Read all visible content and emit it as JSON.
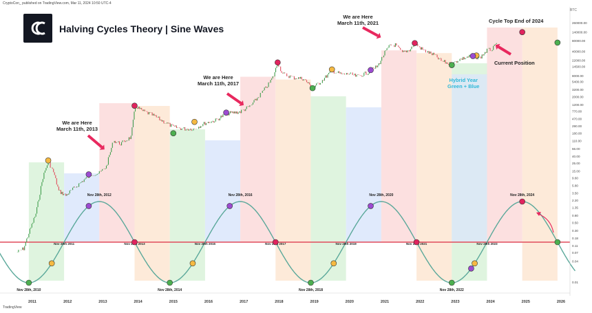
{
  "header": {
    "published": "CryptoCon_ published on TradingView.com, Mar 11, 2024 10:50 UTC-4",
    "title": "Halving Cycles Theory | Sine Waves",
    "currency": "BTC",
    "tradingview": "TradingView"
  },
  "annotations": {
    "here_2013": [
      "We are Here",
      "March 11th, 2013"
    ],
    "here_2017": [
      "We are Here",
      "March 11th, 2017"
    ],
    "here_2021": [
      "We are Here",
      "March 11th, 2021"
    ],
    "cycle_top": "Cycle Top End of 2024",
    "current_position": "Current Position",
    "hybrid_year": [
      "Hybrid Year",
      "Green + Blue"
    ]
  },
  "colors": {
    "green_zone": "#d9f2d9",
    "blue_zone": "#dbe6fb",
    "red_zone": "#fbdada",
    "orange_zone": "#fde6d2",
    "price_up": "#3d9c4a",
    "price_down": "#e04c5c",
    "sine": "#5aa89a",
    "baseline": "#e04a5a",
    "dot_green": "#4caf50",
    "dot_orange": "#f5b942",
    "dot_purple": "#9c4bd1",
    "dot_red": "#e0245e",
    "arrow": "#e8285e"
  },
  "chart_data": {
    "type": "line",
    "title": "Halving Cycles Theory | Sine Waves",
    "y_scale": "log",
    "x_tick_labels": [
      "2011",
      "2012",
      "2013",
      "2014",
      "2015",
      "2016",
      "2017",
      "2018",
      "2019",
      "2020",
      "2021",
      "2022",
      "2023",
      "2024",
      "2025",
      "2026"
    ],
    "y_tick_labels": [
      "260000.00",
      "140000.00",
      "80000.00",
      "40000.00",
      "22000.00",
      "14500.00",
      "8000.00",
      "5400.00",
      "3200.00",
      "2000.00",
      "1200.00",
      "770.00",
      "470.00",
      "290.00",
      "180.00",
      "110.00",
      "66.00",
      "40.00",
      "25.00",
      "15.00",
      "9.60",
      "5.80",
      "3.50",
      "2.20",
      "1.35",
      "0.80",
      "0.50",
      "0.30",
      "0.18",
      "0.11",
      "0.07",
      "0.04",
      "0.01"
    ],
    "zones": [
      {
        "type": "green",
        "from": 2010.9,
        "to": 2011.9
      },
      {
        "type": "blue",
        "from": 2011.9,
        "to": 2012.9
      },
      {
        "type": "red",
        "from": 2012.9,
        "to": 2013.9
      },
      {
        "type": "orange",
        "from": 2013.9,
        "to": 2014.9
      },
      {
        "type": "green",
        "from": 2014.9,
        "to": 2015.9
      },
      {
        "type": "blue",
        "from": 2015.9,
        "to": 2016.9
      },
      {
        "type": "red",
        "from": 2016.9,
        "to": 2017.9
      },
      {
        "type": "orange",
        "from": 2017.9,
        "to": 2018.9
      },
      {
        "type": "green",
        "from": 2018.9,
        "to": 2019.9
      },
      {
        "type": "blue",
        "from": 2019.9,
        "to": 2020.9
      },
      {
        "type": "red",
        "from": 2020.9,
        "to": 2021.9
      },
      {
        "type": "orange",
        "from": 2021.9,
        "to": 2022.9
      },
      {
        "type": "green",
        "from": 2022.9,
        "to": 2023.9
      },
      {
        "type": "blue",
        "from": 2022.9,
        "to": 2023.9
      },
      {
        "type": "red",
        "from": 2023.9,
        "to": 2024.9
      },
      {
        "type": "orange",
        "from": 2024.9,
        "to": 2025.9
      }
    ],
    "sine_wave": {
      "period_years": 4,
      "peaks": [
        2012.9,
        2016.9,
        2020.9,
        2024.9
      ],
      "troughs": [
        2010.9,
        2014.9,
        2018.9,
        2022.9
      ],
      "labels": [
        {
          "x": 2010.9,
          "text": "Nov 28th, 2010",
          "pos": "trough"
        },
        {
          "x": 2011.9,
          "text": "Nov 28th 2011",
          "pos": "mid"
        },
        {
          "x": 2012.9,
          "text": "Nov 28th, 2012",
          "pos": "peak"
        },
        {
          "x": 2013.9,
          "text": "Nov 28th 2013",
          "pos": "mid"
        },
        {
          "x": 2014.9,
          "text": "Nov 28th, 2014",
          "pos": "trough"
        },
        {
          "x": 2015.9,
          "text": "Nov 28th 2015",
          "pos": "mid"
        },
        {
          "x": 2016.9,
          "text": "Nov 28th, 2016",
          "pos": "peak"
        },
        {
          "x": 2017.9,
          "text": "Nov 28th 2017",
          "pos": "mid"
        },
        {
          "x": 2018.9,
          "text": "Nov 28th, 2018",
          "pos": "trough"
        },
        {
          "x": 2019.9,
          "text": "Nov 28th 2019",
          "pos": "mid"
        },
        {
          "x": 2020.9,
          "text": "Nov 28th, 2020",
          "pos": "peak"
        },
        {
          "x": 2021.9,
          "text": "Nov 28th 2021",
          "pos": "mid"
        },
        {
          "x": 2022.9,
          "text": "Nov 28th, 2022",
          "pos": "trough"
        },
        {
          "x": 2023.9,
          "text": "Nov 28th 2023",
          "pos": "mid"
        },
        {
          "x": 2024.9,
          "text": "Nov 28th, 2024",
          "pos": "peak"
        }
      ]
    },
    "price_series": {
      "x": [
        2010.55,
        2010.75,
        2010.9,
        2011.1,
        2011.3,
        2011.45,
        2011.6,
        2011.75,
        2011.95,
        2012.2,
        2012.5,
        2012.7,
        2012.9,
        2013.1,
        2013.3,
        2013.5,
        2013.8,
        2013.92,
        2014.1,
        2014.4,
        2014.7,
        2015.0,
        2015.3,
        2015.6,
        2015.9,
        2016.2,
        2016.5,
        2016.9,
        2017.2,
        2017.5,
        2017.7,
        2017.85,
        2017.96,
        2018.1,
        2018.4,
        2018.7,
        2018.95,
        2019.2,
        2019.5,
        2019.8,
        2020.0,
        2020.2,
        2020.5,
        2020.8,
        2021.0,
        2021.15,
        2021.3,
        2021.5,
        2021.7,
        2021.85,
        2022.1,
        2022.4,
        2022.6,
        2022.9,
        2023.1,
        2023.4,
        2023.7,
        2023.9,
        2024.05,
        2024.2
      ],
      "values": [
        0.07,
        0.09,
        0.25,
        0.9,
        10,
        28,
        14,
        4,
        3,
        5,
        9,
        12,
        13,
        20,
        110,
        90,
        140,
        1100,
        800,
        600,
        400,
        270,
        240,
        240,
        350,
        420,
        650,
        740,
        1100,
        2500,
        4500,
        8000,
        19000,
        9000,
        7000,
        6500,
        3500,
        5500,
        11000,
        8500,
        9000,
        7500,
        9500,
        15000,
        36000,
        58000,
        60000,
        36000,
        44000,
        66000,
        42000,
        31000,
        21000,
        16500,
        23000,
        28000,
        26000,
        42000,
        45000,
        70000
      ]
    },
    "dots": [
      {
        "color": "orange",
        "x": 2011.45,
        "y": 30
      },
      {
        "color": "purple",
        "x": 2012.6,
        "y": 12
      },
      {
        "color": "red",
        "x": 2013.9,
        "y": 1100
      },
      {
        "color": "orange",
        "x": 2015.6,
        "y": 380
      },
      {
        "color": "green",
        "x": 2015.0,
        "y": 180
      },
      {
        "color": "purple",
        "x": 2016.5,
        "y": 700
      },
      {
        "color": "red",
        "x": 2017.96,
        "y": 19000
      },
      {
        "color": "orange",
        "x": 2019.5,
        "y": 12000
      },
      {
        "color": "green",
        "x": 2018.95,
        "y": 3500
      },
      {
        "color": "purple",
        "x": 2020.6,
        "y": 11500
      },
      {
        "color": "red",
        "x": 2021.85,
        "y": 68000
      },
      {
        "color": "green",
        "x": 2022.9,
        "y": 16000
      },
      {
        "color": "orange",
        "x": 2023.6,
        "y": 30000
      },
      {
        "color": "purple",
        "x": 2023.5,
        "y": 29000
      },
      {
        "color": "red",
        "x": 2024.9,
        "y": 140000
      },
      {
        "color": "green",
        "x": 2025.9,
        "y": 70000
      }
    ],
    "sine_dots": [
      {
        "color": "green",
        "x": 2010.9
      },
      {
        "color": "orange",
        "x": 2011.55
      },
      {
        "color": "purple",
        "x": 2012.6
      },
      {
        "color": "red",
        "x": 2013.9
      },
      {
        "color": "green",
        "x": 2014.9
      },
      {
        "color": "orange",
        "x": 2015.55
      },
      {
        "color": "purple",
        "x": 2016.6
      },
      {
        "color": "red",
        "x": 2017.9
      },
      {
        "color": "green",
        "x": 2018.9
      },
      {
        "color": "orange",
        "x": 2019.55
      },
      {
        "color": "purple",
        "x": 2020.6
      },
      {
        "color": "red",
        "x": 2021.9
      },
      {
        "color": "green",
        "x": 2022.9
      },
      {
        "color": "orange",
        "x": 2023.55
      },
      {
        "color": "purple",
        "x": 2023.45
      },
      {
        "color": "red",
        "x": 2024.9
      },
      {
        "color": "green",
        "x": 2025.9
      }
    ]
  }
}
